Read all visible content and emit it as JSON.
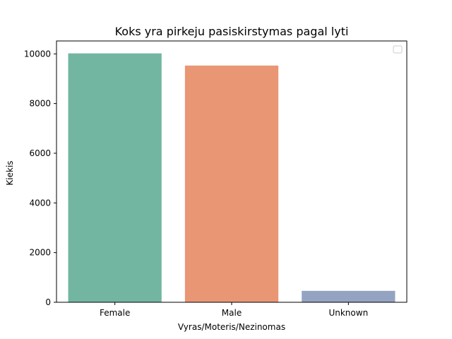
{
  "chart_data": {
    "type": "bar",
    "title": "Koks yra pirkeju pasiskirstymas pagal lyti",
    "xlabel": "Vyras/Moteris/Nezinomas",
    "ylabel": "Kiekis",
    "categories": [
      "Female",
      "Male",
      "Unknown"
    ],
    "values": [
      10020,
      9530,
      460
    ],
    "colors": [
      "#72b6a1",
      "#e99675",
      "#95a3c3"
    ],
    "ylim": [
      0,
      10520
    ],
    "yticks": [
      0,
      2000,
      4000,
      6000,
      8000,
      10000
    ],
    "grid": false,
    "legend": {
      "placement": "top-right",
      "entries": []
    }
  }
}
